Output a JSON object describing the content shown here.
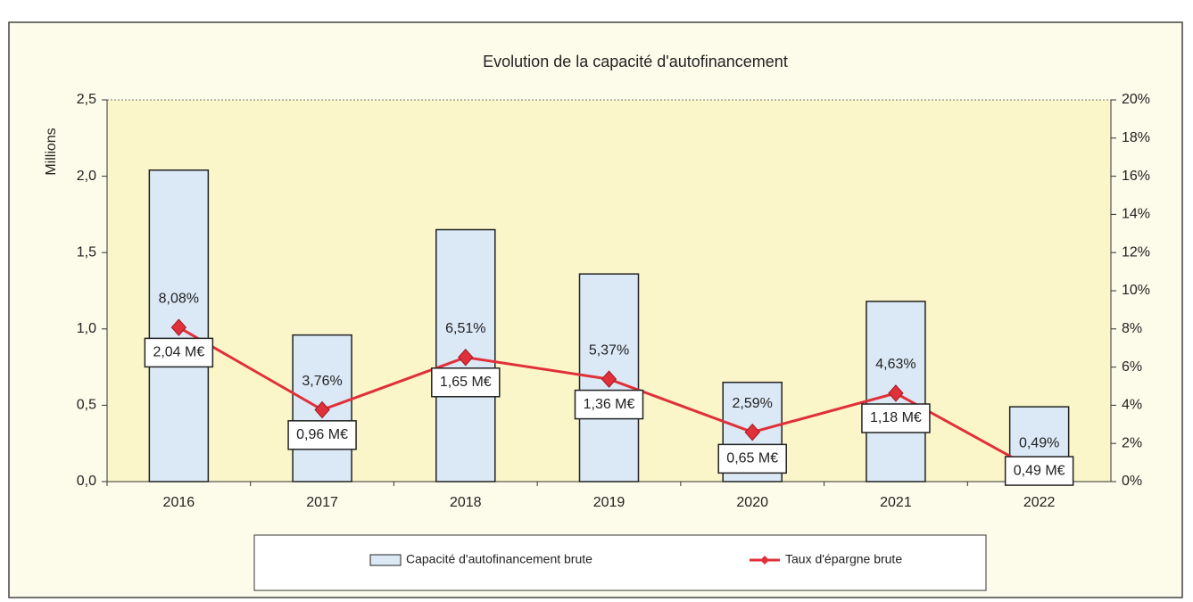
{
  "chart_data": {
    "type": "bar",
    "title": "Evolution de la capacité d'autofinancement",
    "y_label": "Millions",
    "categories": [
      "2016",
      "2017",
      "2018",
      "2019",
      "2020",
      "2021",
      "2022"
    ],
    "series": [
      {
        "name": "Capacité d'autofinancement brute",
        "type": "bar",
        "color": "#dbe8f5",
        "values": [
          2.04,
          0.96,
          1.65,
          1.36,
          0.65,
          1.18,
          0.49
        ],
        "value_labels": [
          "2,04 M€",
          "0,96 M€",
          "1,65 M€",
          "1,36 M€",
          "0,65 M€",
          "1,18 M€",
          "0,49 M€"
        ]
      },
      {
        "name": "Taux d'épargne brute",
        "type": "line",
        "axis": "y2",
        "color": "#e0303a",
        "values": [
          8.08,
          3.76,
          6.51,
          5.37,
          2.59,
          4.63,
          0.49
        ],
        "value_labels": [
          "8,08%",
          "3,76%",
          "6,51%",
          "5,37%",
          "2,59%",
          "4,63%",
          "0,49%"
        ]
      }
    ],
    "ylim": [
      0,
      2.5
    ],
    "yticks": [
      {
        "value": 0,
        "label": "0,0"
      },
      {
        "value": 0.5,
        "label": "0,5"
      },
      {
        "value": 1,
        "label": "1,0"
      },
      {
        "value": 1.5,
        "label": "1,5"
      },
      {
        "value": 2,
        "label": "2,0"
      },
      {
        "value": 2.5,
        "label": "2,5"
      }
    ],
    "y2lim": [
      0,
      20
    ],
    "y2ticks": [
      {
        "value": 0,
        "label": "0%"
      },
      {
        "value": 2,
        "label": "2%"
      },
      {
        "value": 4,
        "label": "4%"
      },
      {
        "value": 6,
        "label": "6%"
      },
      {
        "value": 8,
        "label": "8%"
      },
      {
        "value": 10,
        "label": "10%"
      },
      {
        "value": 12,
        "label": "12%"
      },
      {
        "value": 14,
        "label": "14%"
      },
      {
        "value": 16,
        "label": "16%"
      },
      {
        "value": 18,
        "label": "18%"
      },
      {
        "value": 20,
        "label": "20%"
      }
    ],
    "legend": "bottom"
  }
}
